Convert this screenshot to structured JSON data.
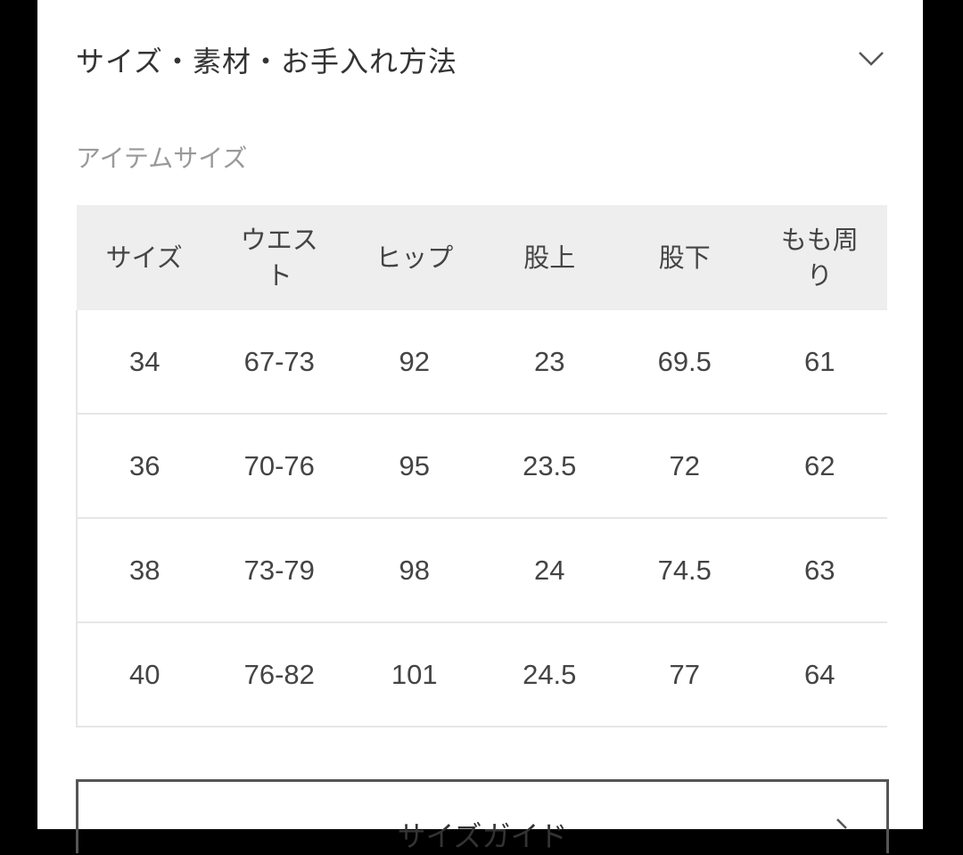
{
  "section": {
    "title": "サイズ・素材・お手入れ方法",
    "toggle_icon": "chevron-down-icon"
  },
  "item_size": {
    "label": "アイテムサイズ",
    "headers": [
      "サイズ",
      "ウエスト",
      "ヒップ",
      "股上",
      "股下",
      "もも周り"
    ],
    "rows": [
      [
        "34",
        "67-73",
        "92",
        "23",
        "69.5",
        "61"
      ],
      [
        "36",
        "70-76",
        "95",
        "23.5",
        "72",
        "62"
      ],
      [
        "38",
        "73-79",
        "98",
        "24",
        "74.5",
        "63"
      ],
      [
        "40",
        "76-82",
        "101",
        "24.5",
        "77",
        "64"
      ]
    ]
  },
  "size_guide": {
    "label": "サイズガイド",
    "icon": "chevron-right-icon"
  }
}
